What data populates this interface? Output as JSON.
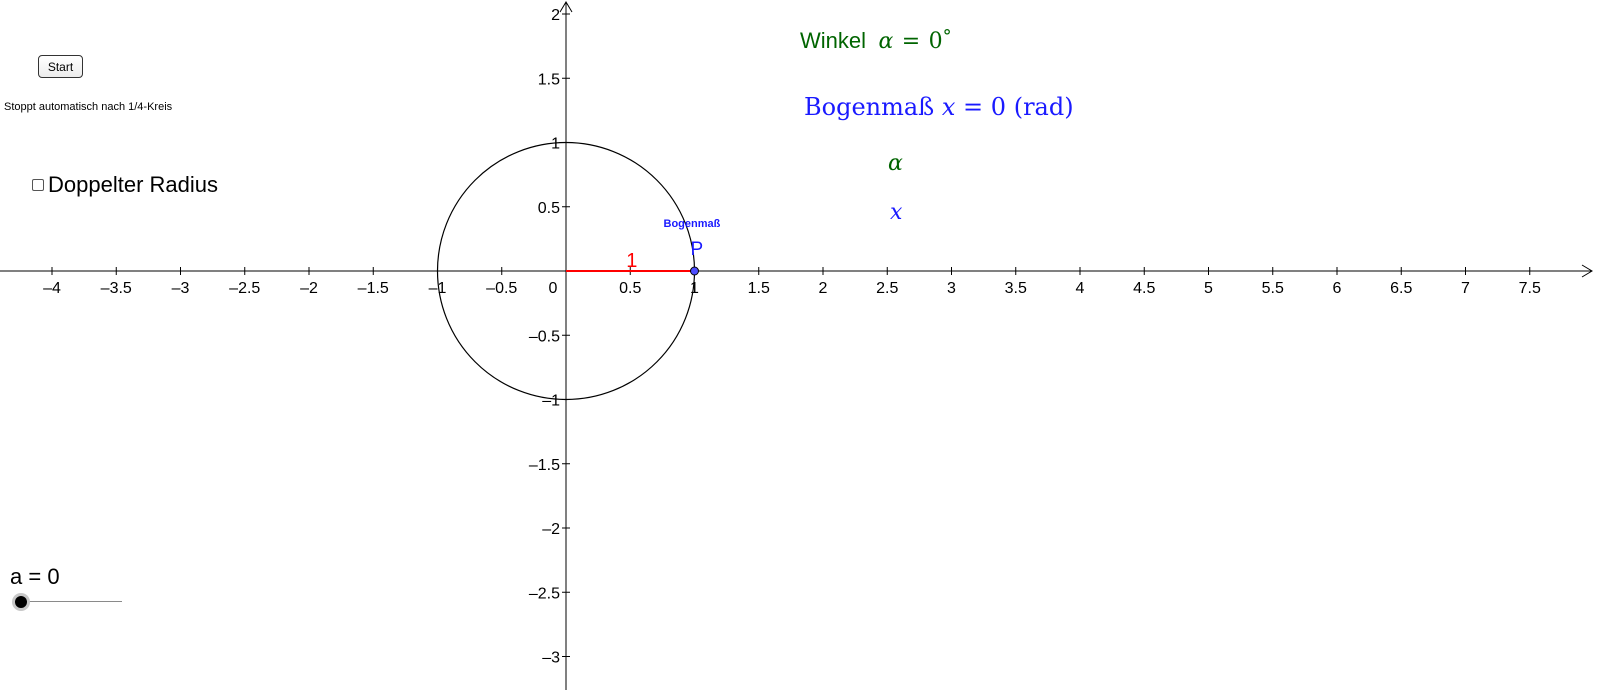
{
  "controls": {
    "start_button": "Start",
    "stop_note": "Stoppt automatisch nach 1/4-Kreis",
    "checkbox_label": "Doppelter Radius",
    "checkbox_checked": false,
    "slider_name": "a",
    "slider_eq": "=",
    "slider_value": "0"
  },
  "formulas": {
    "winkel_word": "Winkel",
    "winkel_var": "α",
    "winkel_eq": "=",
    "winkel_value": "0",
    "winkel_unit": "°",
    "bogenmass_word": "Bogenmaß",
    "bogenmass_var": "x",
    "bogenmass_eq": "=",
    "bogenmass_value": "0",
    "bogenmass_unit": "(rad)",
    "alpha_label": "α",
    "x_label": "x"
  },
  "graph": {
    "x_ticks": [
      "-4",
      "-3.5",
      "-3",
      "-2.5",
      "-2",
      "-1.5",
      "-1",
      "-0.5",
      "0",
      "0.5",
      "1",
      "1.5",
      "2",
      "2.5",
      "3",
      "3.5",
      "4",
      "4.5",
      "5",
      "5.5",
      "6",
      "6.5",
      "7",
      "7.5"
    ],
    "y_ticks": [
      "-3",
      "-2.5",
      "-2",
      "-1.5",
      "-1",
      "-0.5",
      "0.5",
      "1",
      "1.5",
      "2"
    ],
    "circle_radius": 1,
    "segment_label": "1",
    "point_label": "P",
    "arc_label": "Bogenmaß",
    "point_x": 1,
    "point_y": 0,
    "colors": {
      "green": "#006400",
      "blue": "#1a1aff",
      "red": "#ff0000",
      "point_fill": "#4d4dff",
      "axis": "#000000"
    }
  }
}
